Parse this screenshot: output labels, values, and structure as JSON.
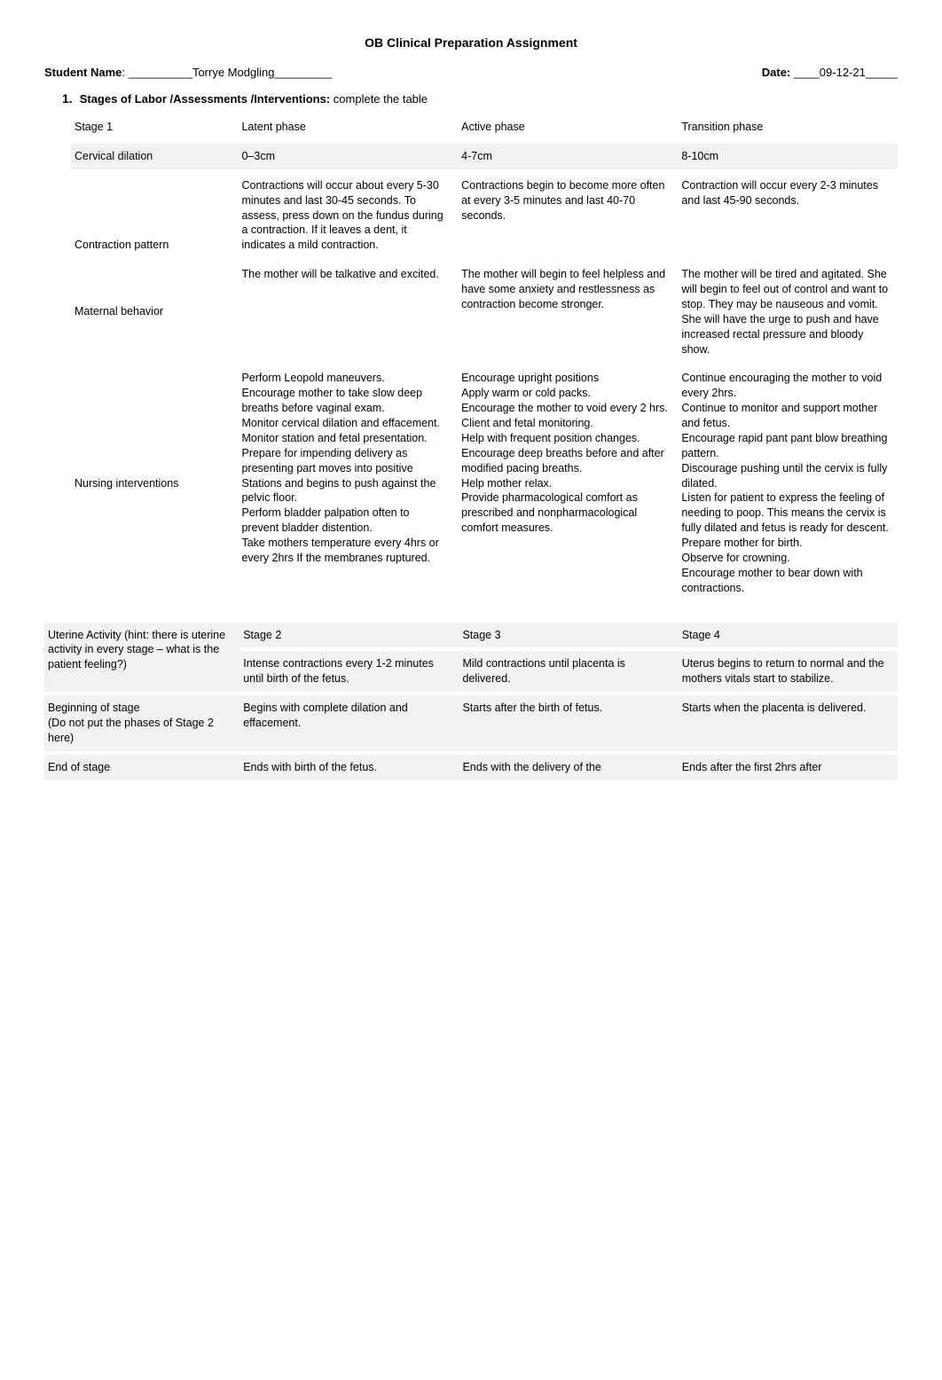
{
  "title": "OB Clinical Preparation Assignment",
  "header": {
    "student_label": "Student Name",
    "student_value": "__________Torrye Modgling_________",
    "date_label": "Date:",
    "date_value": "____09-12-21_____"
  },
  "section1": {
    "num": "1.",
    "title": "Stages of Labor /Assessments /Interventions:",
    "rest": "complete the table"
  },
  "tableA": {
    "cols": [
      "Stage 1",
      "Latent phase",
      "Active phase",
      "Transition phase"
    ],
    "rows": [
      {
        "label": "Cervical dilation",
        "cells": [
          "0–3cm",
          "4-7cm",
          "8-10cm"
        ],
        "shaded": true
      },
      {
        "label": "Contraction pattern",
        "cells": [
          "Contractions will occur about every 5-30 minutes and last 30-45 seconds. To assess, press down on the fundus during a contraction. If it leaves a dent, it indicates a mild contraction.",
          "Contractions begin to become more often at every 3-5 minutes and last 40-70 seconds.",
          "Contraction will occur every 2-3 minutes and last 45-90 seconds."
        ],
        "shaded": false
      },
      {
        "label": "Maternal behavior",
        "cells": [
          "The mother will be talkative and excited.",
          "The mother will begin to feel helpless and have some anxiety and restlessness as contraction become stronger.",
          "The mother will be tired and agitated. She will begin to feel out of control and want to stop. They may be nauseous and vomit. She will have the urge to push and have increased rectal pressure and bloody show."
        ],
        "shaded": false
      },
      {
        "label": "Nursing interventions",
        "cells": [
          "Perform Leopold maneuvers.\nEncourage mother to take slow deep breaths before vaginal exam.\nMonitor cervical dilation and effacement. Monitor station and fetal presentation.\nPrepare for impending delivery as presenting part moves into positive Stations and begins to push against the pelvic floor.\nPerform bladder palpation often to prevent bladder distention.\nTake mothers temperature every 4hrs or every 2hrs If the membranes ruptured.",
          "Encourage upright positions\nApply warm or cold packs.\nEncourage the mother to void every 2 hrs.\nClient and fetal monitoring.\nHelp with frequent position changes.\nEncourage deep breaths before and after modified pacing breaths.\nHelp mother relax.\nProvide pharmacological comfort as prescribed and nonpharmacological comfort measures.",
          "Continue encouraging the mother to void every 2hrs.\nContinue to monitor and support mother and fetus.\nEncourage rapid pant pant blow breathing pattern.\nDiscourage pushing until the cervix is fully dilated.\nListen for patient to express the feeling of needing to poop. This means the cervix is fully dilated and fetus is ready for descent.\nPrepare mother for birth.\nObserve for crowning.\nEncourage mother to bear down with contractions."
        ],
        "shaded": false
      }
    ]
  },
  "tableB": {
    "heads": [
      "",
      "Stage 2",
      "Stage 3",
      "Stage 4"
    ],
    "rows": [
      {
        "label": "Uterine Activity (hint: there is uterine activity in every stage – what is the patient feeling?)",
        "cells": [
          "Intense contractions every 1-2 minutes until birth of the fetus.",
          "Mild contractions until placenta is delivered.",
          "Uterus begins to return to normal and the mothers vitals start to stabilize."
        ],
        "shaded": true
      },
      {
        "label": "Beginning of stage\n(Do not put the phases of Stage 2 here)",
        "cells": [
          "Begins with complete dilation and effacement.",
          "Starts after the birth of fetus.",
          "Starts when the placenta is delivered."
        ],
        "shaded": true
      },
      {
        "label": "End of stage",
        "cells": [
          "Ends with birth of the fetus.",
          "Ends with the delivery of the",
          "Ends after the first 2hrs after"
        ],
        "shaded": true
      }
    ]
  }
}
